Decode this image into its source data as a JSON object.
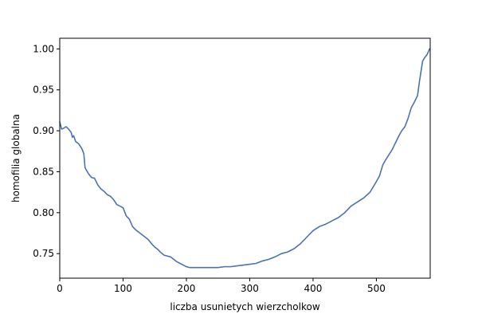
{
  "chart_data": {
    "type": "line",
    "title": "",
    "xlabel": "liczba usunietych wierzcholkow",
    "ylabel": "homofilia globalna",
    "xlim": [
      0,
      585
    ],
    "ylim": [
      0.72,
      1.013
    ],
    "grid": false,
    "x_ticks": [
      0,
      100,
      200,
      300,
      400,
      500
    ],
    "x_tick_labels": [
      "0",
      "100",
      "200",
      "300",
      "400",
      "500"
    ],
    "y_ticks": [
      0.75,
      0.8,
      0.85,
      0.9,
      0.95,
      1.0
    ],
    "y_tick_labels": [
      "0.75",
      "0.80",
      "0.85",
      "0.90",
      "0.95",
      "1.00"
    ],
    "series": [
      {
        "color": "#4c72b0",
        "x": [
          0,
          3,
          6,
          10,
          14,
          18,
          20,
          22,
          25,
          30,
          35,
          38,
          40,
          42,
          45,
          50,
          55,
          60,
          65,
          70,
          75,
          80,
          85,
          90,
          95,
          100,
          105,
          110,
          115,
          120,
          125,
          130,
          135,
          140,
          145,
          150,
          155,
          160,
          165,
          170,
          175,
          180,
          185,
          190,
          195,
          200,
          205,
          210,
          215,
          220,
          225,
          230,
          240,
          250,
          260,
          270,
          280,
          290,
          300,
          310,
          320,
          330,
          340,
          350,
          360,
          370,
          380,
          390,
          400,
          410,
          420,
          430,
          440,
          450,
          460,
          470,
          480,
          490,
          500,
          505,
          510,
          515,
          520,
          525,
          530,
          535,
          540,
          545,
          550,
          555,
          560,
          565,
          568,
          570,
          573,
          576,
          580,
          584
        ],
        "y": [
          0.911,
          0.902,
          0.903,
          0.905,
          0.902,
          0.898,
          0.892,
          0.894,
          0.887,
          0.884,
          0.878,
          0.872,
          0.855,
          0.852,
          0.848,
          0.843,
          0.842,
          0.834,
          0.829,
          0.826,
          0.822,
          0.82,
          0.816,
          0.81,
          0.808,
          0.806,
          0.796,
          0.792,
          0.783,
          0.779,
          0.776,
          0.773,
          0.77,
          0.767,
          0.762,
          0.758,
          0.755,
          0.751,
          0.748,
          0.747,
          0.746,
          0.743,
          0.74,
          0.738,
          0.736,
          0.734,
          0.733,
          0.733,
          0.733,
          0.733,
          0.733,
          0.733,
          0.733,
          0.733,
          0.734,
          0.734,
          0.735,
          0.736,
          0.737,
          0.738,
          0.741,
          0.743,
          0.746,
          0.75,
          0.752,
          0.756,
          0.762,
          0.77,
          0.778,
          0.783,
          0.786,
          0.79,
          0.794,
          0.8,
          0.808,
          0.813,
          0.818,
          0.825,
          0.838,
          0.845,
          0.858,
          0.865,
          0.871,
          0.877,
          0.885,
          0.893,
          0.9,
          0.905,
          0.915,
          0.928,
          0.935,
          0.943,
          0.96,
          0.97,
          0.985,
          0.989,
          0.993,
          1.0
        ]
      }
    ]
  }
}
